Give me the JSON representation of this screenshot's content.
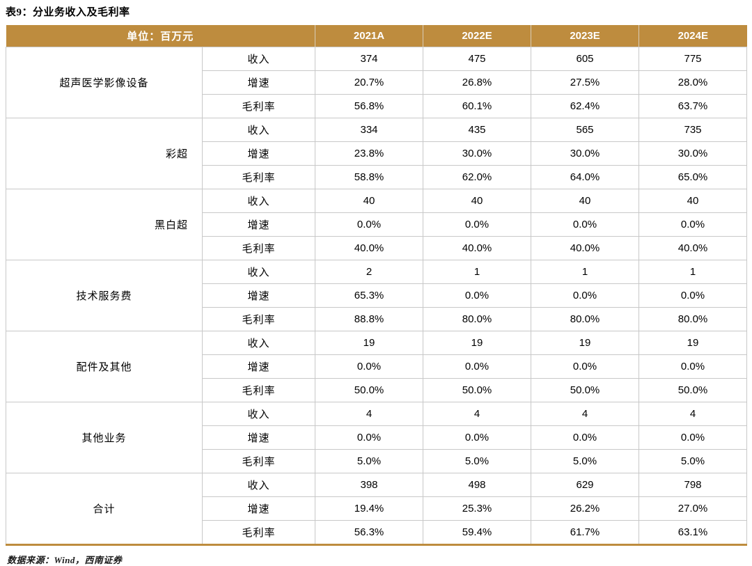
{
  "title": "表9：分业务收入及毛利率",
  "footer": "数据来源：Wind，西南证券",
  "colors": {
    "header_bg": "#BE8C3E",
    "header_text": "#FFFFFF",
    "highlight_bg": "#FBE5D6",
    "grid_line": "#C8C8C8",
    "bottom_rule": "#BE8C3E"
  },
  "table": {
    "unit_label": "单位：百万元",
    "year_headers": [
      "2021A",
      "2022E",
      "2023E",
      "2024E"
    ],
    "metric_labels": [
      "收入",
      "增速",
      "毛利率"
    ],
    "groups": [
      {
        "name": "超声医学影像设备",
        "align": "center",
        "highlight_income": false,
        "rows": {
          "income": [
            "374",
            "475",
            "605",
            "775"
          ],
          "growth": [
            "20.7%",
            "26.8%",
            "27.5%",
            "28.0%"
          ],
          "margin": [
            "56.8%",
            "60.1%",
            "62.4%",
            "63.7%"
          ]
        }
      },
      {
        "name": "彩超",
        "align": "right",
        "highlight_income": true,
        "rows": {
          "income": [
            "334",
            "435",
            "565",
            "735"
          ],
          "growth": [
            "23.8%",
            "30.0%",
            "30.0%",
            "30.0%"
          ],
          "margin": [
            "58.8%",
            "62.0%",
            "64.0%",
            "65.0%"
          ]
        }
      },
      {
        "name": "黑白超",
        "align": "right",
        "highlight_income": true,
        "rows": {
          "income": [
            "40",
            "40",
            "40",
            "40"
          ],
          "growth": [
            "0.0%",
            "0.0%",
            "0.0%",
            "0.0%"
          ],
          "margin": [
            "40.0%",
            "40.0%",
            "40.0%",
            "40.0%"
          ]
        }
      },
      {
        "name": "技术服务费",
        "align": "center",
        "highlight_income": false,
        "rows": {
          "income": [
            "2",
            "1",
            "1",
            "1"
          ],
          "growth": [
            "65.3%",
            "0.0%",
            "0.0%",
            "0.0%"
          ],
          "margin": [
            "88.8%",
            "80.0%",
            "80.0%",
            "80.0%"
          ]
        }
      },
      {
        "name": "配件及其他",
        "align": "center",
        "highlight_income": false,
        "rows": {
          "income": [
            "19",
            "19",
            "19",
            "19"
          ],
          "growth": [
            "0.0%",
            "0.0%",
            "0.0%",
            "0.0%"
          ],
          "margin": [
            "50.0%",
            "50.0%",
            "50.0%",
            "50.0%"
          ]
        }
      },
      {
        "name": "其他业务",
        "align": "center",
        "highlight_income": false,
        "rows": {
          "income": [
            "4",
            "4",
            "4",
            "4"
          ],
          "growth": [
            "0.0%",
            "0.0%",
            "0.0%",
            "0.0%"
          ],
          "margin": [
            "5.0%",
            "5.0%",
            "5.0%",
            "5.0%"
          ]
        }
      },
      {
        "name": "合计",
        "align": "center",
        "highlight_income": false,
        "rows": {
          "income": [
            "398",
            "498",
            "629",
            "798"
          ],
          "growth": [
            "19.4%",
            "25.3%",
            "26.2%",
            "27.0%"
          ],
          "margin": [
            "56.3%",
            "59.4%",
            "61.7%",
            "63.1%"
          ]
        }
      }
    ]
  }
}
